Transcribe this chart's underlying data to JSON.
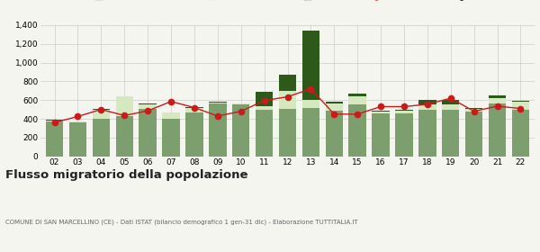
{
  "years": [
    "02",
    "03",
    "04",
    "05",
    "06",
    "07",
    "08",
    "09",
    "10",
    "11",
    "12",
    "13",
    "14",
    "15",
    "16",
    "17",
    "18",
    "19",
    "20",
    "21",
    "22"
  ],
  "iscritti_altri_comuni": [
    375,
    360,
    400,
    425,
    505,
    400,
    465,
    565,
    550,
    500,
    510,
    515,
    490,
    555,
    455,
    460,
    500,
    500,
    475,
    560,
    500
  ],
  "iscritti_estero": [
    10,
    10,
    100,
    215,
    50,
    65,
    55,
    10,
    10,
    30,
    185,
    85,
    75,
    90,
    20,
    30,
    50,
    55,
    35,
    65,
    85
  ],
  "iscritti_altri": [
    5,
    5,
    5,
    5,
    5,
    5,
    5,
    5,
    5,
    155,
    175,
    740,
    15,
    25,
    10,
    10,
    50,
    50,
    10,
    25,
    10
  ],
  "cancellati": [
    360,
    425,
    500,
    435,
    485,
    585,
    520,
    430,
    480,
    595,
    635,
    720,
    450,
    450,
    530,
    530,
    555,
    620,
    480,
    535,
    510
  ],
  "colors": {
    "iscritti_altri_comuni": "#7d9e6d",
    "iscritti_estero": "#d6e8c0",
    "iscritti_altri": "#2d5a1b",
    "cancellati": "#cc1a1a"
  },
  "ylim": [
    0,
    1400
  ],
  "yticks": [
    0,
    200,
    400,
    600,
    800,
    1000,
    1200,
    1400
  ],
  "title": "Flusso migratorio della popolazione",
  "subtitle": "COMUNE DI SAN MARCELLINO (CE) - Dati ISTAT (bilancio demografico 1 gen-31 dic) - Elaborazione TUTTITALIA.IT",
  "background_color": "#f5f5f0"
}
